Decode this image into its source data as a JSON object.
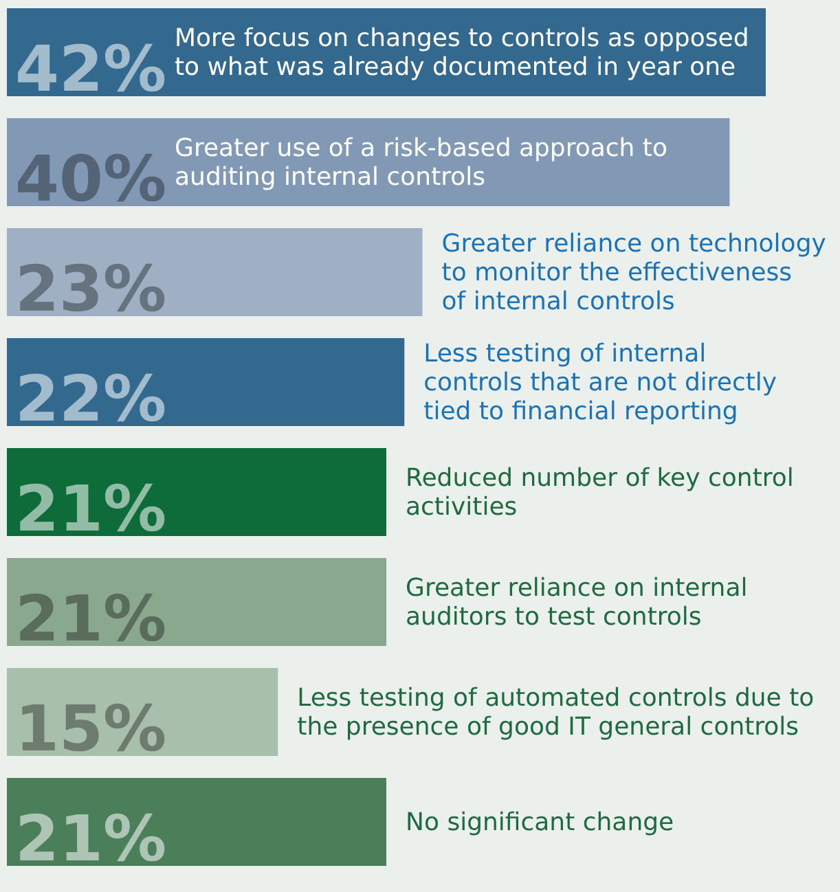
{
  "chart_data": {
    "type": "bar",
    "orientation": "horizontal",
    "categories": [
      "More focus on changes to controls as opposed to what was already documented in year one",
      "Greater use of a risk-based approach to auditing internal controls",
      "Greater reliance on technology to monitor the effectiveness of internal controls",
      "Less testing of internal controls that are not directly tied to financial reporting",
      "Reduced number of key control activities",
      "Greater reliance on internal auditors to test controls",
      "Less testing of automated controls due to the presence of good IT general controls",
      "No significant change"
    ],
    "values": [
      42,
      40,
      23,
      22,
      21,
      21,
      15,
      21
    ],
    "value_labels": [
      "42%",
      "40%",
      "23%",
      "22%",
      "21%",
      "21%",
      "15%",
      "21%"
    ],
    "colors": [
      "#33698f",
      "#8199b5",
      "#9fb0c4",
      "#33698f",
      "#0e6b3a",
      "#8aa88e",
      "#a8bfab",
      "#4a7f5a"
    ]
  }
}
